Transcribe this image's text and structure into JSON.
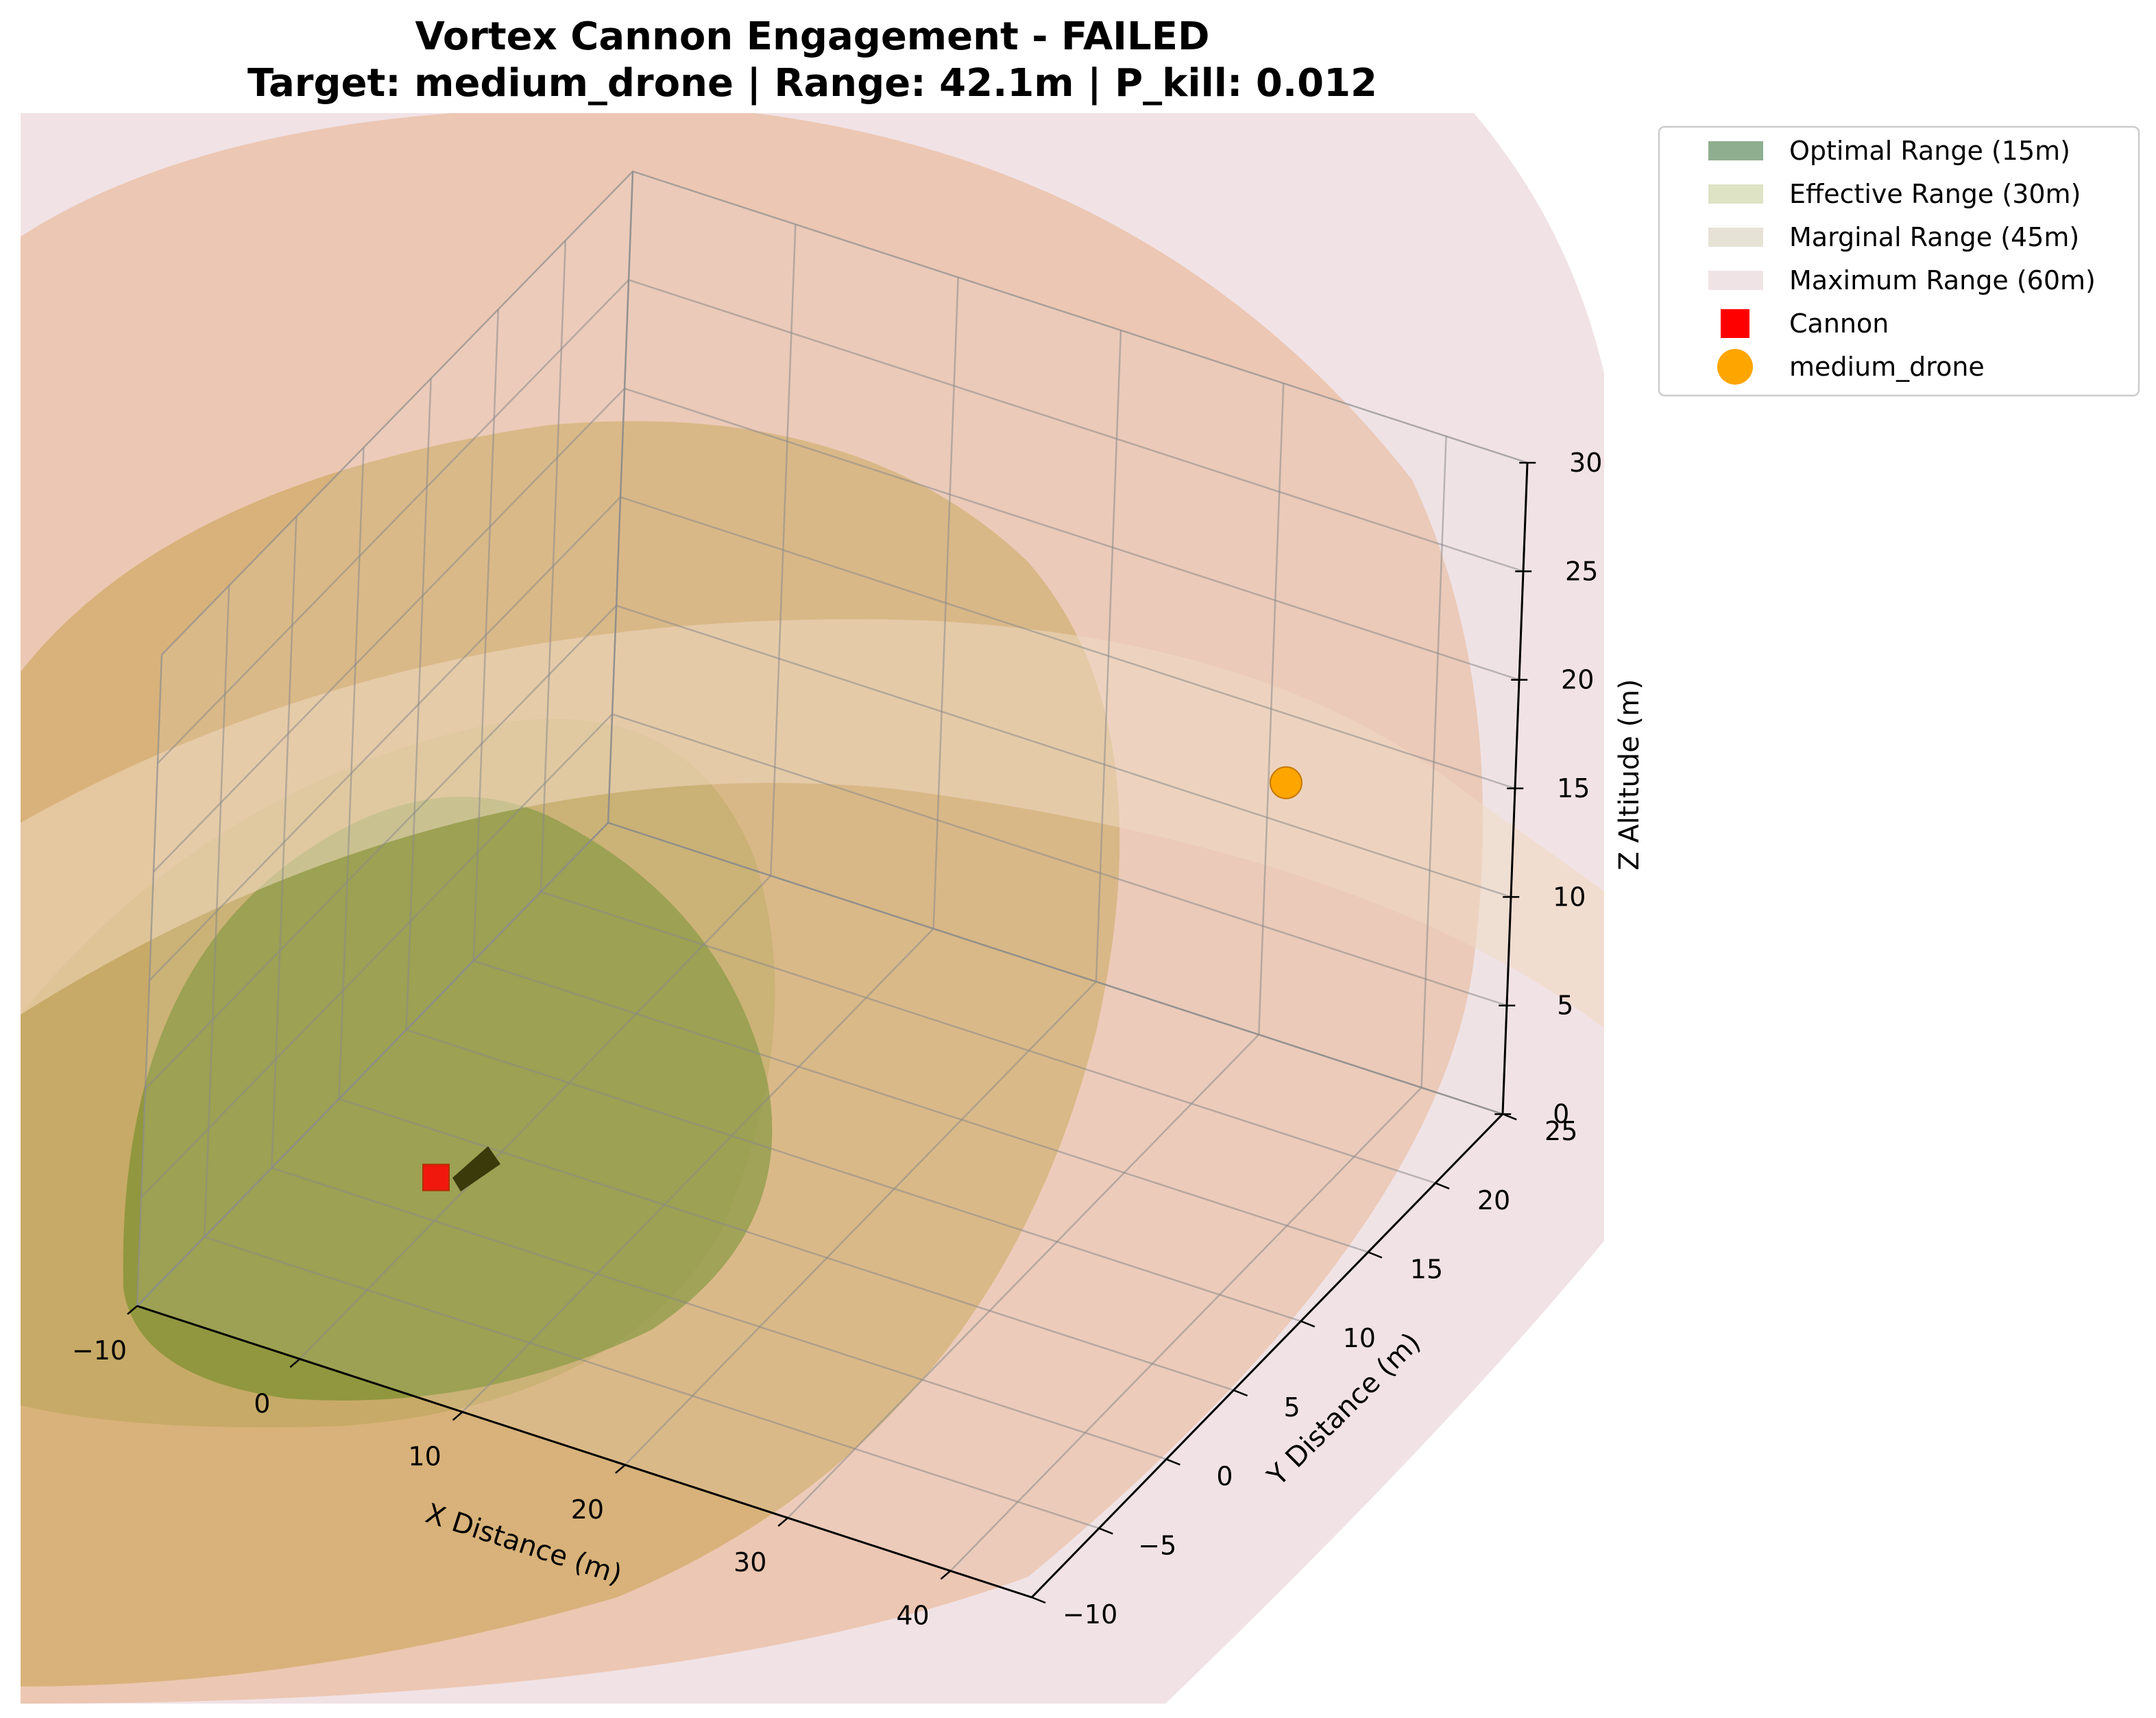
{
  "chart_data": {
    "type": "scatter",
    "projection": "3d",
    "title_line1": "Vortex Cannon Engagement - FAILED",
    "title_line2": "Target: medium_drone | Range: 42.1m | P_kill: 0.012",
    "xlabel": "X Distance (m)",
    "ylabel": "Y Distance (m)",
    "zlabel": "Z Altitude (m)",
    "xlim": [
      -10,
      45
    ],
    "ylim": [
      -10,
      25
    ],
    "zlim": [
      0,
      30
    ],
    "x_ticks": [
      "−10",
      "0",
      "10",
      "20",
      "30",
      "40"
    ],
    "y_ticks": [
      "−10",
      "−5",
      "0",
      "5",
      "10",
      "15",
      "20",
      "25"
    ],
    "z_ticks": [
      "0",
      "5",
      "10",
      "15",
      "20",
      "25",
      "30"
    ],
    "grid": true,
    "legend_position": "outside-upper-right",
    "range_zones": [
      {
        "label": "Optimal Range (15m)",
        "radius": 15,
        "color": "#8fae8f"
      },
      {
        "label": "Effective Range (30m)",
        "radius": 30,
        "color": "#dde3c4"
      },
      {
        "label": "Marginal Range (45m)",
        "radius": 45,
        "color": "#e6e3d6"
      },
      {
        "label": "Maximum Range (60m)",
        "radius": 60,
        "color": "#f0e3e6"
      }
    ],
    "points": [
      {
        "label": "Cannon",
        "x": 0,
        "y": 0,
        "z": 2,
        "marker": "square",
        "color": "#ff0000"
      },
      {
        "label": "medium_drone",
        "x": 35,
        "y": 20,
        "z": 16,
        "marker": "circle",
        "color": "#ffa500"
      }
    ]
  }
}
